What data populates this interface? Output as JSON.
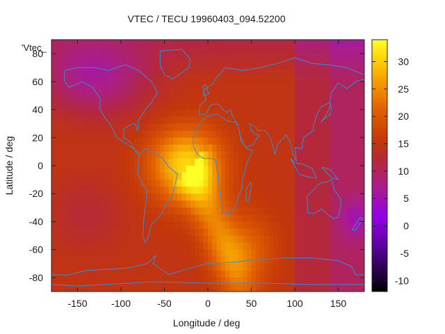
{
  "chart_data": {
    "type": "heatmap",
    "title": "VTEC / TECU 19960403_094.52200",
    "xlabel": "Longitude / deg",
    "ylabel": "Latitude / deg",
    "xlim": [
      -180,
      180
    ],
    "ylim": [
      -90,
      90
    ],
    "x_ticks": [
      -150,
      -100,
      -50,
      0,
      50,
      100,
      150
    ],
    "y_ticks": [
      80,
      60,
      40,
      20,
      0,
      -20,
      -40,
      -60,
      -80
    ],
    "colorbar": {
      "range": [
        -12,
        34
      ],
      "ticks": [
        30,
        25,
        20,
        15,
        10,
        5,
        0,
        -5,
        -10
      ],
      "palette": "gnuplot black-purple-orange-yellow"
    },
    "legend": {
      "label": "'Vtec_",
      "placement": "top-left"
    },
    "background_level_tecu": 15,
    "features": [
      {
        "name": "equatorial-peak",
        "lon": -25,
        "lat": 0,
        "peak_tecu": 31
      },
      {
        "name": "southern-tongue",
        "lon": 45,
        "lat": -60,
        "peak_tecu": 24
      },
      {
        "name": "north-atlantic-low",
        "lon": -130,
        "lat": 62,
        "min_tecu": 7
      },
      {
        "name": "pacific-low",
        "lon": 170,
        "lat": -38,
        "min_tecu": 8
      }
    ]
  }
}
